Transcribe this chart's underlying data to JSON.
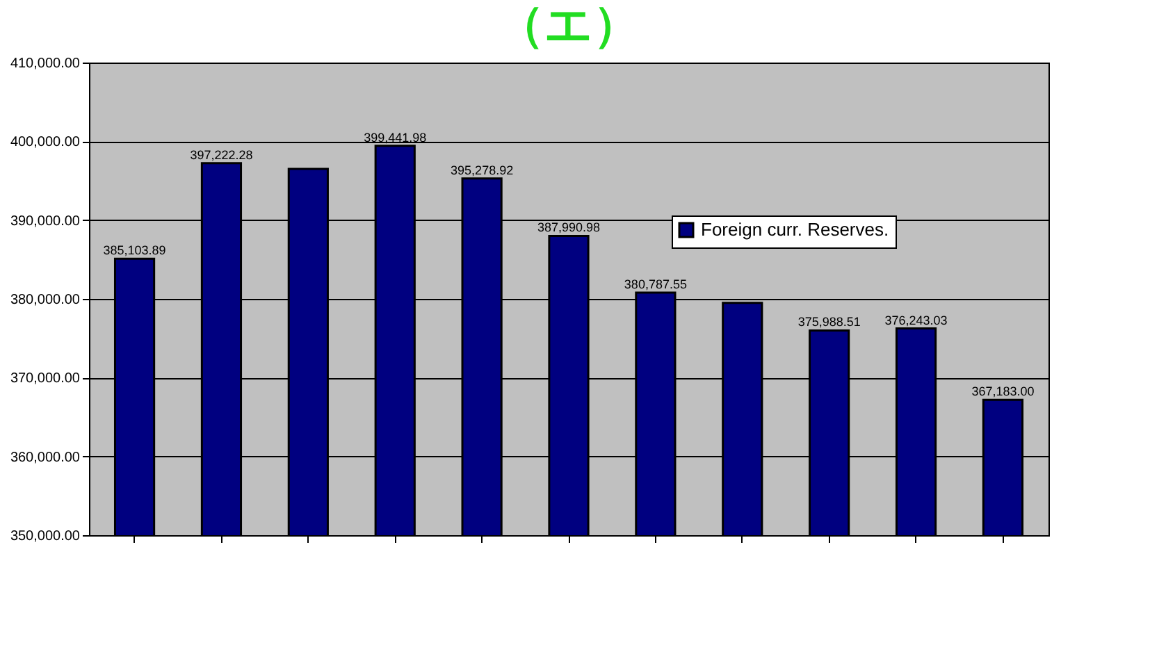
{
  "chart_data": {
    "type": "bar",
    "title": "（エ）",
    "categories": [
      null,
      null,
      null,
      null,
      null,
      null,
      null,
      null,
      null,
      null,
      null
    ],
    "series": [
      {
        "name": "Foreign curr. Reserves.",
        "color": "#000080",
        "values": [
          385103.89,
          397222.28,
          396500,
          399441.98,
          395278.92,
          387990.98,
          380787.55,
          379500,
          375988.51,
          376243.03,
          367183.0
        ],
        "value_labels": [
          "385,103.89",
          "397,222.28",
          null,
          "399,441.98",
          "395,278.92",
          "387,990.98",
          "380,787.55",
          null,
          "375,988.51",
          "376,243.03",
          "367,183.00"
        ]
      }
    ],
    "ylim": [
      350000,
      410000
    ],
    "yticks": [
      {
        "value": 350000,
        "label": "350,000.00"
      },
      {
        "value": 360000,
        "label": "360,000.00"
      },
      {
        "value": 370000,
        "label": "370,000.00"
      },
      {
        "value": 380000,
        "label": "380,000.00"
      },
      {
        "value": 390000,
        "label": "390,000.00"
      },
      {
        "value": 400000,
        "label": "400,000.00"
      },
      {
        "value": 410000,
        "label": "410,000.00"
      }
    ],
    "grid": "y",
    "legend": "top right"
  }
}
